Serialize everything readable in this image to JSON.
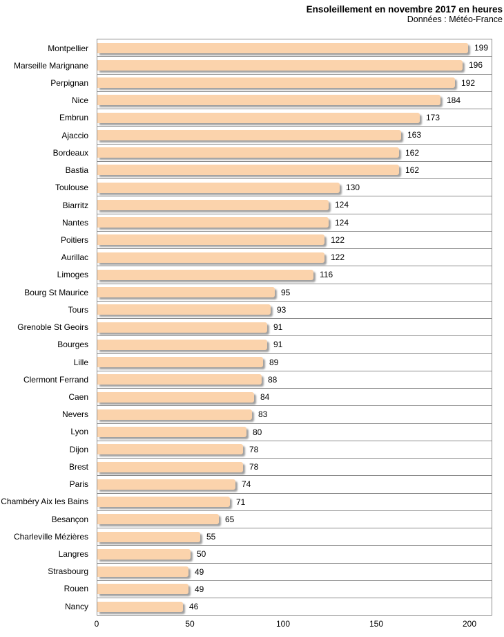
{
  "chart_data": {
    "type": "bar",
    "orientation": "horizontal",
    "title": "Ensoleillement en novembre 2017 en heures",
    "subtitle": "Données : Météo-France",
    "categories": [
      "Montpellier",
      "Marseille Marignane",
      "Perpignan",
      "Nice",
      "Embrun",
      "Ajaccio",
      "Bordeaux",
      "Bastia",
      "Toulouse",
      "Biarritz",
      "Nantes",
      "Poitiers",
      "Aurillac",
      "Limoges",
      "Bourg St Maurice",
      "Tours",
      "Grenoble St Geoirs",
      "Bourges",
      "Lille",
      "Clermont Ferrand",
      "Caen",
      "Nevers",
      "Lyon",
      "Dijon",
      "Brest",
      "Paris",
      "Chambéry Aix les Bains",
      "Besançon",
      "Charleville Mézières",
      "Langres",
      "Strasbourg",
      "Rouen",
      "Nancy"
    ],
    "values": [
      199,
      196,
      192,
      184,
      173,
      163,
      162,
      162,
      130,
      124,
      124,
      122,
      122,
      116,
      95,
      93,
      91,
      91,
      89,
      88,
      84,
      83,
      80,
      78,
      78,
      74,
      71,
      65,
      55,
      50,
      49,
      49,
      46
    ],
    "value_labels_shown": true,
    "xlabel": "",
    "ylabel": "",
    "xlim": [
      0,
      200
    ],
    "xticks": [
      0,
      50,
      100,
      150,
      200
    ],
    "grid": "horizontal-category-separators",
    "legend": "none",
    "bar_color": "#fbd3ac",
    "grid_color": "#8c8c8c",
    "text_color": "#000000",
    "background_color": "#ffffff"
  }
}
